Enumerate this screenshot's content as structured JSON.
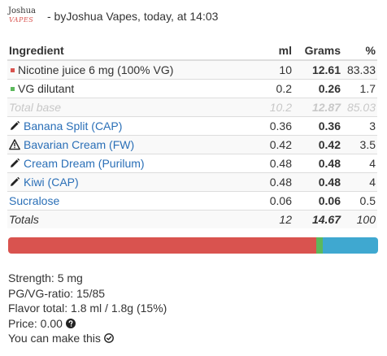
{
  "header": {
    "logo_line1": "Joshua",
    "logo_line2": "VAPES",
    "by_prefix": "- by ",
    "author": "Joshua Vapes",
    "time_text": ", today, at 14:03"
  },
  "table": {
    "headers": {
      "ingredient": "Ingredient",
      "ml": "ml",
      "grams": "Grams",
      "percent": "%"
    },
    "base_rows": [
      {
        "name": "Nicotine juice 6 mg (100% VG)",
        "ml": "10",
        "grams": "12.61",
        "percent": "83.33",
        "marker_color": "#d9534f"
      },
      {
        "name": "VG dilutant",
        "ml": "0.2",
        "grams": "0.26",
        "percent": "1.7",
        "marker_color": "#5cb85c"
      }
    ],
    "total_base": {
      "name": "Total base",
      "ml": "10.2",
      "grams": "12.87",
      "percent": "85.03"
    },
    "flavors": [
      {
        "name": "Banana Split (CAP)",
        "ml": "0.36",
        "grams": "0.36",
        "percent": "3",
        "icon": "pencil-icon"
      },
      {
        "name": "Bavarian Cream (FW)",
        "ml": "0.42",
        "grams": "0.42",
        "percent": "3.5",
        "icon": "warning-icon"
      },
      {
        "name": "Cream Dream (Purilum)",
        "ml": "0.48",
        "grams": "0.48",
        "percent": "4",
        "icon": "pencil-icon"
      },
      {
        "name": "Kiwi (CAP)",
        "ml": "0.48",
        "grams": "0.48",
        "percent": "4",
        "icon": "pencil-icon"
      }
    ],
    "sweetener": {
      "name": "Sucralose",
      "ml": "0.06",
      "grams": "0.06",
      "percent": "0.5"
    },
    "totals": {
      "name": "Totals",
      "ml": "12",
      "grams": "14.67",
      "percent": "100"
    }
  },
  "composition_bar": {
    "segments": [
      {
        "label": "nicotine",
        "percent": 83.33,
        "color": "#d9534f"
      },
      {
        "label": "vg-dilutant",
        "percent": 1.7,
        "color": "#5cb85c"
      },
      {
        "label": "flavors",
        "percent": 15,
        "color": "#3fa8d0"
      }
    ]
  },
  "info": {
    "strength": "Strength: 5 mg",
    "pgvg": "PG/VG-ratio: 15/85",
    "flavor_total": "Flavor total: 1.8 ml / 1.8g (15%)",
    "price": "Price: 0.00",
    "can_make": "You can make this"
  }
}
